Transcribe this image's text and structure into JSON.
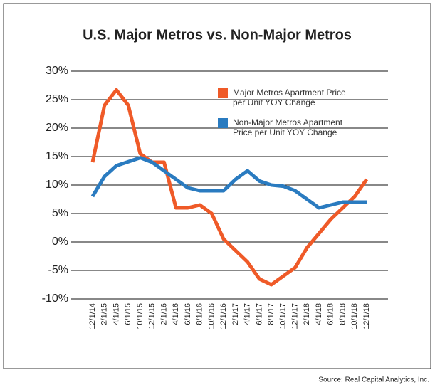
{
  "chart_data": {
    "type": "line",
    "title": "U.S. Major Metros vs. Non-Major Metros",
    "source": "Source: Real Capital Analytics, Inc.",
    "categories": [
      "12/1/14",
      "2/1/15",
      "4/1/15",
      "6/1/15",
      "10/1/15",
      "12/1/15",
      "2/1/16",
      "4/1/16",
      "6/1/16",
      "8/1/16",
      "10/1/16",
      "12/1/16",
      "2/1/17",
      "4/1/17",
      "6/1/17",
      "8/1/17",
      "10/1/17",
      "12/1/17",
      "2/1/18",
      "4/1/18",
      "6/1/18",
      "8/1/18",
      "10/1/18",
      "12/1/18"
    ],
    "series": [
      {
        "name": "Major Metros Apartment Price per Unit YOY Change",
        "color": "#ef5a28",
        "values": [
          14,
          24,
          26.7,
          24,
          15.5,
          14,
          14,
          6,
          6,
          6.5,
          5,
          0.5,
          -1.5,
          -3.5,
          -6.5,
          -7.5,
          -6,
          -4.5,
          -1,
          1.5,
          4,
          6,
          8,
          11
        ]
      },
      {
        "name": "Non-Major Metros Apartment Price per Unit YOY Change",
        "color": "#2a7bc0",
        "values": [
          8,
          11.5,
          13.4,
          14.1,
          14.8,
          14,
          12.5,
          11,
          9.5,
          9,
          9,
          9,
          11,
          12.5,
          10.7,
          10,
          9.8,
          9,
          7.5,
          6,
          6.5,
          7,
          7,
          7
        ]
      }
    ],
    "ylim": [
      -10,
      30
    ],
    "yticks": [
      {
        "value": -10,
        "label": "-10%"
      },
      {
        "value": -5,
        "label": "-5%"
      },
      {
        "value": 0,
        "label": "0%"
      },
      {
        "value": 5,
        "label": "5%"
      },
      {
        "value": 10,
        "label": "10%"
      },
      {
        "value": 15,
        "label": "15%"
      },
      {
        "value": 20,
        "label": "20%"
      },
      {
        "value": 25,
        "label": "25%"
      },
      {
        "value": 30,
        "label": "30%"
      }
    ],
    "grid": true,
    "legend": "top-right"
  }
}
